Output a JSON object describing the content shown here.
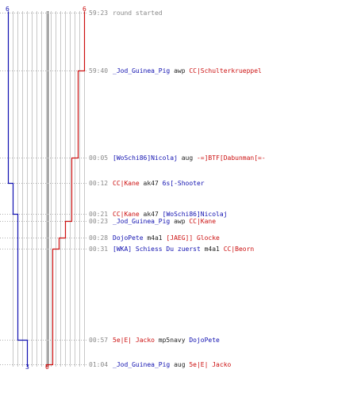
{
  "chart_data": {
    "type": "line",
    "series": [
      {
        "color": "#1010b0",
        "start": 6,
        "end": 3
      },
      {
        "color": "#cc1010",
        "start": 6,
        "end": 0
      }
    ]
  },
  "labels": {
    "blue_top": "6",
    "red_top": "6",
    "blue_bottom": "3",
    "red_bottom": "0"
  },
  "events": [
    {
      "time": "59:23",
      "parts": [
        {
          "text": "round started",
          "c": "msg"
        }
      ]
    },
    {
      "time": "59:40",
      "parts": [
        {
          "text": "_Jod_Guinea_Pig",
          "c": "blue"
        },
        {
          "text": " awp ",
          "c": "plain"
        },
        {
          "text": "CC|Schulterkrueppel",
          "c": "red"
        }
      ]
    },
    {
      "time": "00:05",
      "parts": [
        {
          "text": "[WoSchi86]Nicolaj",
          "c": "blue"
        },
        {
          "text": " aug ",
          "c": "plain"
        },
        {
          "text": "-=]BTF[Dabunman[=-",
          "c": "red"
        }
      ]
    },
    {
      "time": "00:12",
      "parts": [
        {
          "text": "CC|Kane",
          "c": "red"
        },
        {
          "text": " ak47 ",
          "c": "plain"
        },
        {
          "text": "6s[-Shooter",
          "c": "blue"
        }
      ]
    },
    {
      "time": "00:21",
      "parts": [
        {
          "text": "CC|Kane",
          "c": "red"
        },
        {
          "text": " ak47 ",
          "c": "plain"
        },
        {
          "text": "[WoSchi86]Nicolaj",
          "c": "blue"
        }
      ]
    },
    {
      "time": "00:23",
      "parts": [
        {
          "text": "_Jod_Guinea_Pig",
          "c": "blue"
        },
        {
          "text": " awp ",
          "c": "plain"
        },
        {
          "text": "CC|Kane",
          "c": "red"
        }
      ]
    },
    {
      "time": "00:28",
      "parts": [
        {
          "text": "DojoPete",
          "c": "blue"
        },
        {
          "text": " m4a1 ",
          "c": "plain"
        },
        {
          "text": "[JAEG]] Glocke",
          "c": "red"
        }
      ]
    },
    {
      "time": "00:31",
      "parts": [
        {
          "text": "[WKA] Schiess Du zuerst",
          "c": "blue"
        },
        {
          "text": " m4a1 ",
          "c": "plain"
        },
        {
          "text": "CC|Beorn",
          "c": "red"
        }
      ]
    },
    {
      "time": "00:57",
      "parts": [
        {
          "text": "5e|E| Jacko",
          "c": "red"
        },
        {
          "text": " mp5navy ",
          "c": "plain"
        },
        {
          "text": "DojoPete",
          "c": "blue"
        }
      ]
    },
    {
      "time": "01:04",
      "parts": [
        {
          "text": "_Jod_Guinea_Pig",
          "c": "blue"
        },
        {
          "text": " aug ",
          "c": "plain"
        },
        {
          "text": "5e|E| Jacko",
          "c": "red"
        }
      ]
    }
  ]
}
